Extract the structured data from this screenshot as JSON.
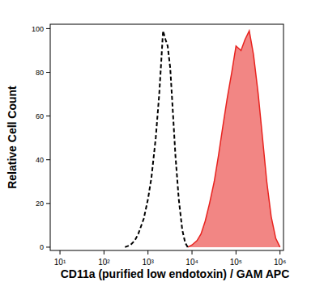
{
  "chart_data": {
    "type": "line",
    "x_label": "CD11a (purified low endotoxin) / GAM APC",
    "y_label": "Relative Cell Count",
    "log": "x",
    "x": [
      300,
      400,
      500,
      600,
      800,
      1000,
      1200,
      1500,
      1800,
      2000,
      2200,
      2500,
      2800,
      3200,
      3600,
      4200,
      5000,
      6000,
      7000,
      8000,
      10000,
      13000,
      16000,
      20000,
      25000,
      32000,
      40000,
      50000,
      63000,
      80000,
      100000,
      130000,
      160000,
      200000,
      250000,
      320000,
      400000,
      500000,
      630000,
      800000,
      1000000
    ],
    "series": [
      {
        "type": "line",
        "color": "#000000",
        "line_style": "dashed",
        "values": [
          0,
          1,
          3,
          6,
          13,
          22,
          32,
          50,
          70,
          85,
          99,
          95,
          92,
          82,
          65,
          42,
          22,
          8,
          2,
          0,
          null,
          null,
          null,
          null,
          null,
          null,
          null,
          null,
          null,
          null,
          null,
          null,
          null,
          null,
          null,
          null,
          null,
          null,
          null,
          null,
          null
        ]
      },
      {
        "type": "area",
        "color": "#e8231f",
        "line_style": "solid",
        "values": [
          null,
          null,
          null,
          null,
          null,
          null,
          null,
          null,
          null,
          null,
          null,
          null,
          null,
          null,
          null,
          null,
          null,
          null,
          null,
          0,
          1,
          3,
          6,
          12,
          20,
          30,
          42,
          55,
          68,
          80,
          92,
          90,
          95,
          99,
          88,
          70,
          50,
          30,
          14,
          4,
          0
        ]
      }
    ],
    "xlim": [
      6,
      1200000
    ],
    "xticks": [
      {
        "value": 10,
        "label": "10¹"
      },
      {
        "value": 100,
        "label": "10²"
      },
      {
        "value": 1000,
        "label": "10³"
      },
      {
        "value": 10000,
        "label": "10⁴"
      },
      {
        "value": 100000,
        "label": "10⁵"
      },
      {
        "value": 1000000,
        "label": "10⁶"
      }
    ],
    "ylim": [
      -1.5,
      102
    ],
    "yticks": [
      0,
      20,
      40,
      60,
      80,
      100
    ],
    "grid": false
  }
}
